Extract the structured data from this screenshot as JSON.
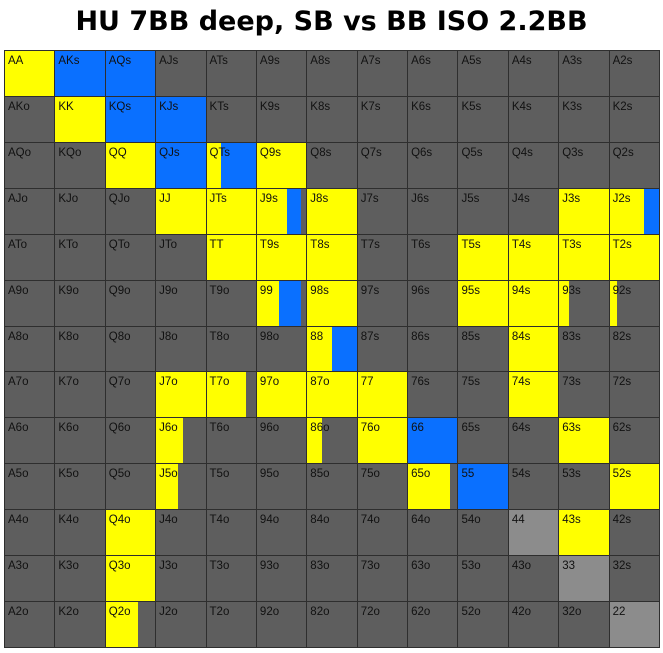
{
  "title": "HU 7BB deep, SB vs BB ISO 2.2BB",
  "colors": {
    "cell_bg": "#5e5e5e",
    "yellow": "#ffff00",
    "blue": "#0a70ff",
    "light_gray": "#8c8c8c",
    "grid_line": "#2e2e2e"
  },
  "rows": [
    [
      "AA",
      "AKs",
      "AQs",
      "AJs",
      "ATs",
      "A9s",
      "A8s",
      "A7s",
      "A6s",
      "A5s",
      "A4s",
      "A3s",
      "A2s"
    ],
    [
      "AKo",
      "KK",
      "KQs",
      "KJs",
      "KTs",
      "K9s",
      "K8s",
      "K7s",
      "K6s",
      "K5s",
      "K4s",
      "K3s",
      "K2s"
    ],
    [
      "AQo",
      "KQo",
      "QQ",
      "QJs",
      "QTs",
      "Q9s",
      "Q8s",
      "Q7s",
      "Q6s",
      "Q5s",
      "Q4s",
      "Q3s",
      "Q2s"
    ],
    [
      "AJo",
      "KJo",
      "QJo",
      "JJ",
      "JTs",
      "J9s",
      "J8s",
      "J7s",
      "J6s",
      "J5s",
      "J4s",
      "J3s",
      "J2s"
    ],
    [
      "ATo",
      "KTo",
      "QTo",
      "JTo",
      "TT",
      "T9s",
      "T8s",
      "T7s",
      "T6s",
      "T5s",
      "T4s",
      "T3s",
      "T2s"
    ],
    [
      "A9o",
      "K9o",
      "Q9o",
      "J9o",
      "T9o",
      "99",
      "98s",
      "97s",
      "96s",
      "95s",
      "94s",
      "93s",
      "92s"
    ],
    [
      "A8o",
      "K8o",
      "Q8o",
      "J8o",
      "T8o",
      "98o",
      "88",
      "87s",
      "86s",
      "85s",
      "84s",
      "83s",
      "82s"
    ],
    [
      "A7o",
      "K7o",
      "Q7o",
      "J7o",
      "T7o",
      "97o",
      "87o",
      "77",
      "76s",
      "75s",
      "74s",
      "73s",
      "72s"
    ],
    [
      "A6o",
      "K6o",
      "Q6o",
      "J6o",
      "T6o",
      "96o",
      "86o",
      "76o",
      "66",
      "65s",
      "64s",
      "63s",
      "62s"
    ],
    [
      "A5o",
      "K5o",
      "Q5o",
      "J5o",
      "T5o",
      "95o",
      "85o",
      "75o",
      "65o",
      "55",
      "54s",
      "53s",
      "52s"
    ],
    [
      "A4o",
      "K4o",
      "Q4o",
      "J4o",
      "T4o",
      "94o",
      "84o",
      "74o",
      "64o",
      "54o",
      "44",
      "43s",
      "42s"
    ],
    [
      "A3o",
      "K3o",
      "Q3o",
      "J3o",
      "T3o",
      "93o",
      "83o",
      "73o",
      "63o",
      "53o",
      "43o",
      "33",
      "32s"
    ],
    [
      "A2o",
      "K2o",
      "Q2o",
      "J2o",
      "T2o",
      "92o",
      "82o",
      "72o",
      "62o",
      "52o",
      "42o",
      "32o",
      "22"
    ]
  ],
  "fills": {
    "AA": {
      "yellow": 1.0
    },
    "AKs": {
      "blue": 1.0
    },
    "AQs": {
      "blue": 1.0
    },
    "KK": {
      "yellow": 1.0
    },
    "KQs": {
      "blue": 1.0
    },
    "KJs": {
      "blue": 1.0
    },
    "QQ": {
      "yellow": 1.0
    },
    "QJs": {
      "blue": 1.0
    },
    "QTs": {
      "yellow": 0.3,
      "blue": 0.7
    },
    "Q9s": {
      "yellow": 1.0
    },
    "JJ": {
      "yellow": 1.0
    },
    "JTs": {
      "yellow": 1.0
    },
    "J9s": {
      "yellow": 0.6,
      "blue": 0.3
    },
    "J8s": {
      "yellow": 1.0
    },
    "J3s": {
      "yellow": 1.0
    },
    "J2s": {
      "yellow": 0.7,
      "blue": 0.3
    },
    "TT": {
      "yellow": 1.0
    },
    "T9s": {
      "yellow": 1.0
    },
    "T8s": {
      "yellow": 1.0
    },
    "T5s": {
      "yellow": 1.0
    },
    "T4s": {
      "yellow": 1.0
    },
    "T3s": {
      "yellow": 1.0
    },
    "T2s": {
      "yellow": 1.0
    },
    "99": {
      "yellow": 0.45,
      "blue": 0.45
    },
    "98s": {
      "yellow": 1.0
    },
    "95s": {
      "yellow": 1.0
    },
    "94s": {
      "yellow": 1.0
    },
    "93s": {
      "yellow": 0.2
    },
    "92s": {
      "yellow": 0.15
    },
    "88": {
      "yellow": 0.5,
      "blue": 0.5
    },
    "84s": {
      "yellow": 1.0
    },
    "J7o": {
      "yellow": 1.0
    },
    "T7o": {
      "yellow": 0.8
    },
    "97o": {
      "yellow": 1.0
    },
    "87o": {
      "yellow": 1.0
    },
    "77": {
      "yellow": 1.0
    },
    "74s": {
      "yellow": 1.0
    },
    "J6o": {
      "yellow": 0.55
    },
    "86o": {
      "yellow": 0.3
    },
    "76o": {
      "yellow": 1.0
    },
    "66": {
      "blue": 1.0
    },
    "63s": {
      "yellow": 1.0
    },
    "J5o": {
      "yellow": 0.45
    },
    "65o": {
      "yellow": 0.85
    },
    "55": {
      "blue": 1.0
    },
    "52s": {
      "yellow": 1.0
    },
    "Q4o": {
      "yellow": 1.0
    },
    "44": {
      "light_gray": 1.0
    },
    "43s": {
      "yellow": 1.0
    },
    "Q3o": {
      "yellow": 1.0
    },
    "33": {
      "light_gray": 1.0
    },
    "Q2o": {
      "yellow": 0.65
    },
    "22": {
      "light_gray": 1.0
    }
  }
}
